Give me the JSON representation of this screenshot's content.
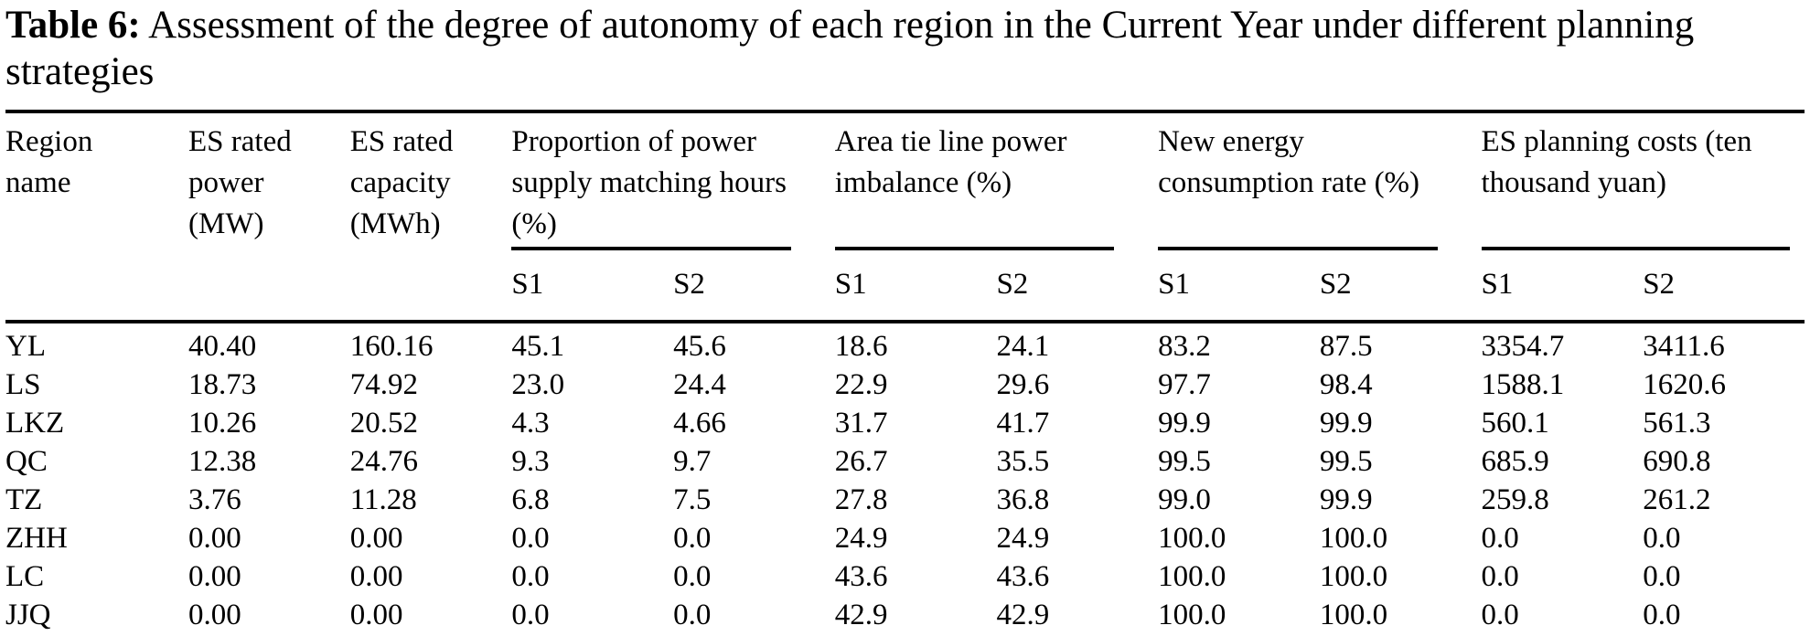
{
  "page": {
    "background": "#ffffff",
    "text_color": "#000000"
  },
  "caption": {
    "label": "Table 6:",
    "text": "Assessment of the degree of autonomy of each region in the Current Year under different planning strategies"
  },
  "table": {
    "header": {
      "region": "Region\nname",
      "es_rated_power": "ES rated\npower\n(MW)",
      "es_rated_capacity": "ES rated\ncapacity\n(MWh)",
      "groups": [
        {
          "label": "Proportion of power\nsupply matching hours\n(%)"
        },
        {
          "label": "Area tie line power\nimbalance (%)"
        },
        {
          "label": "New energy\nconsumption rate (%)"
        },
        {
          "label": "ES planning costs (ten\nthousand yuan)"
        }
      ],
      "scenario_s1": "S1",
      "scenario_s2": "S2"
    },
    "rows": [
      {
        "region": "YL",
        "values": [
          "40.40",
          "160.16",
          "45.1",
          "45.6",
          "18.6",
          "24.1",
          "83.2",
          "87.5",
          "3354.7",
          "3411.6"
        ]
      },
      {
        "region": "LS",
        "values": [
          "18.73",
          "74.92",
          "23.0",
          "24.4",
          "22.9",
          "29.6",
          "97.7",
          "98.4",
          "1588.1",
          "1620.6"
        ]
      },
      {
        "region": "LKZ",
        "values": [
          "10.26",
          "20.52",
          "4.3",
          "4.66",
          "31.7",
          "41.7",
          "99.9",
          "99.9",
          "560.1",
          "561.3"
        ]
      },
      {
        "region": "QC",
        "values": [
          "12.38",
          "24.76",
          "9.3",
          "9.7",
          "26.7",
          "35.5",
          "99.5",
          "99.5",
          "685.9",
          "690.8"
        ]
      },
      {
        "region": "TZ",
        "values": [
          "3.76",
          "11.28",
          "6.8",
          "7.5",
          "27.8",
          "36.8",
          "99.0",
          "99.9",
          "259.8",
          "261.2"
        ]
      },
      {
        "region": "ZHH",
        "values": [
          "0.00",
          "0.00",
          "0.0",
          "0.0",
          "24.9",
          "24.9",
          "100.0",
          "100.0",
          "0.0",
          "0.0"
        ]
      },
      {
        "region": "LC",
        "values": [
          "0.00",
          "0.00",
          "0.0",
          "0.0",
          "43.6",
          "43.6",
          "100.0",
          "100.0",
          "0.0",
          "0.0"
        ]
      },
      {
        "region": "JJQ",
        "values": [
          "0.00",
          "0.00",
          "0.0",
          "0.0",
          "42.9",
          "42.9",
          "100.0",
          "100.0",
          "0.0",
          "0.0"
        ]
      }
    ]
  }
}
